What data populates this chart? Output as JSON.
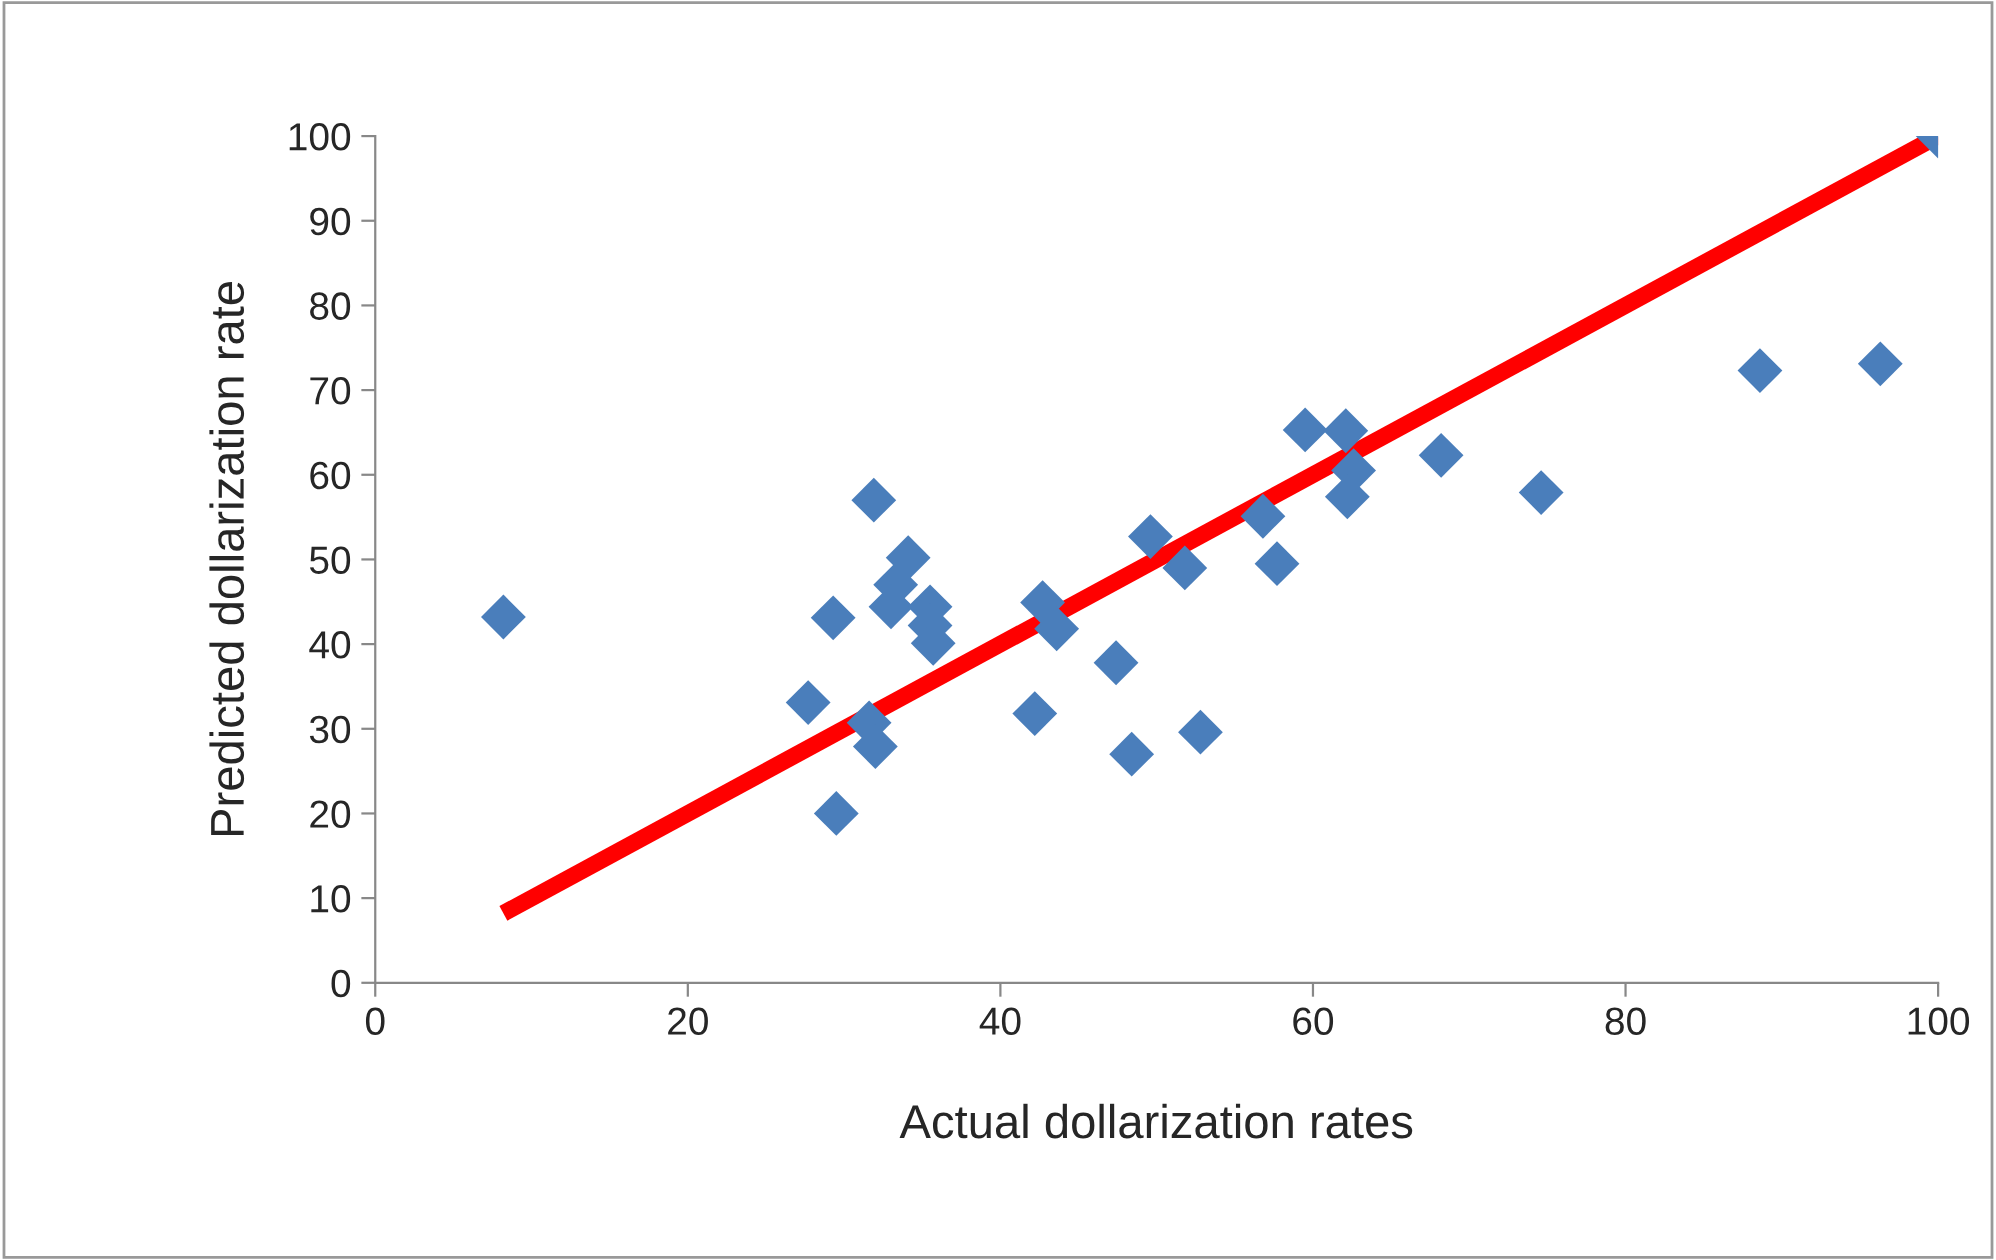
{
  "chart_data": {
    "type": "scatter",
    "xlabel": "Actual dollarization rates",
    "ylabel": "Predicted dollarization rate",
    "xlim": [
      0,
      100
    ],
    "xticks": [
      0,
      20,
      40,
      60,
      80,
      100
    ],
    "ylim": [
      0,
      100
    ],
    "yticks": [
      0,
      10,
      20,
      30,
      40,
      50,
      60,
      70,
      80,
      90,
      100
    ],
    "grid": false,
    "legend": false,
    "marker": "diamond",
    "series": [
      {
        "color": "#4a7ebb",
        "x": [
          8.2,
          31.9,
          34.1,
          33.3,
          33.0,
          35.5,
          35.5,
          35.7,
          29.3,
          27.7,
          31.6,
          32.0,
          29.5,
          42.7,
          43.6,
          42.2,
          47.4,
          48.4,
          52.8,
          49.6,
          51.8,
          56.8,
          57.7,
          59.5,
          62.1,
          62.6,
          62.2,
          68.2,
          74.6,
          88.6,
          96.3,
          100
        ],
        "values": [
          43.2,
          57.0,
          50.2,
          47.0,
          44.4,
          44.4,
          42.2,
          40.1,
          43.1,
          33.1,
          30.7,
          27.9,
          20.0,
          44.9,
          41.8,
          31.8,
          37.8,
          27.0,
          29.6,
          52.7,
          49.0,
          55.1,
          49.5,
          65.3,
          65.2,
          60.5,
          57.4,
          62.3,
          57.9,
          72.3,
          73.1,
          100
        ]
      },
      {
        "type": "line",
        "color": "#ff0000",
        "marker": "none",
        "line_style": "solid",
        "x": [
          8.2,
          100
        ],
        "values": [
          8.2,
          100
        ]
      }
    ]
  }
}
